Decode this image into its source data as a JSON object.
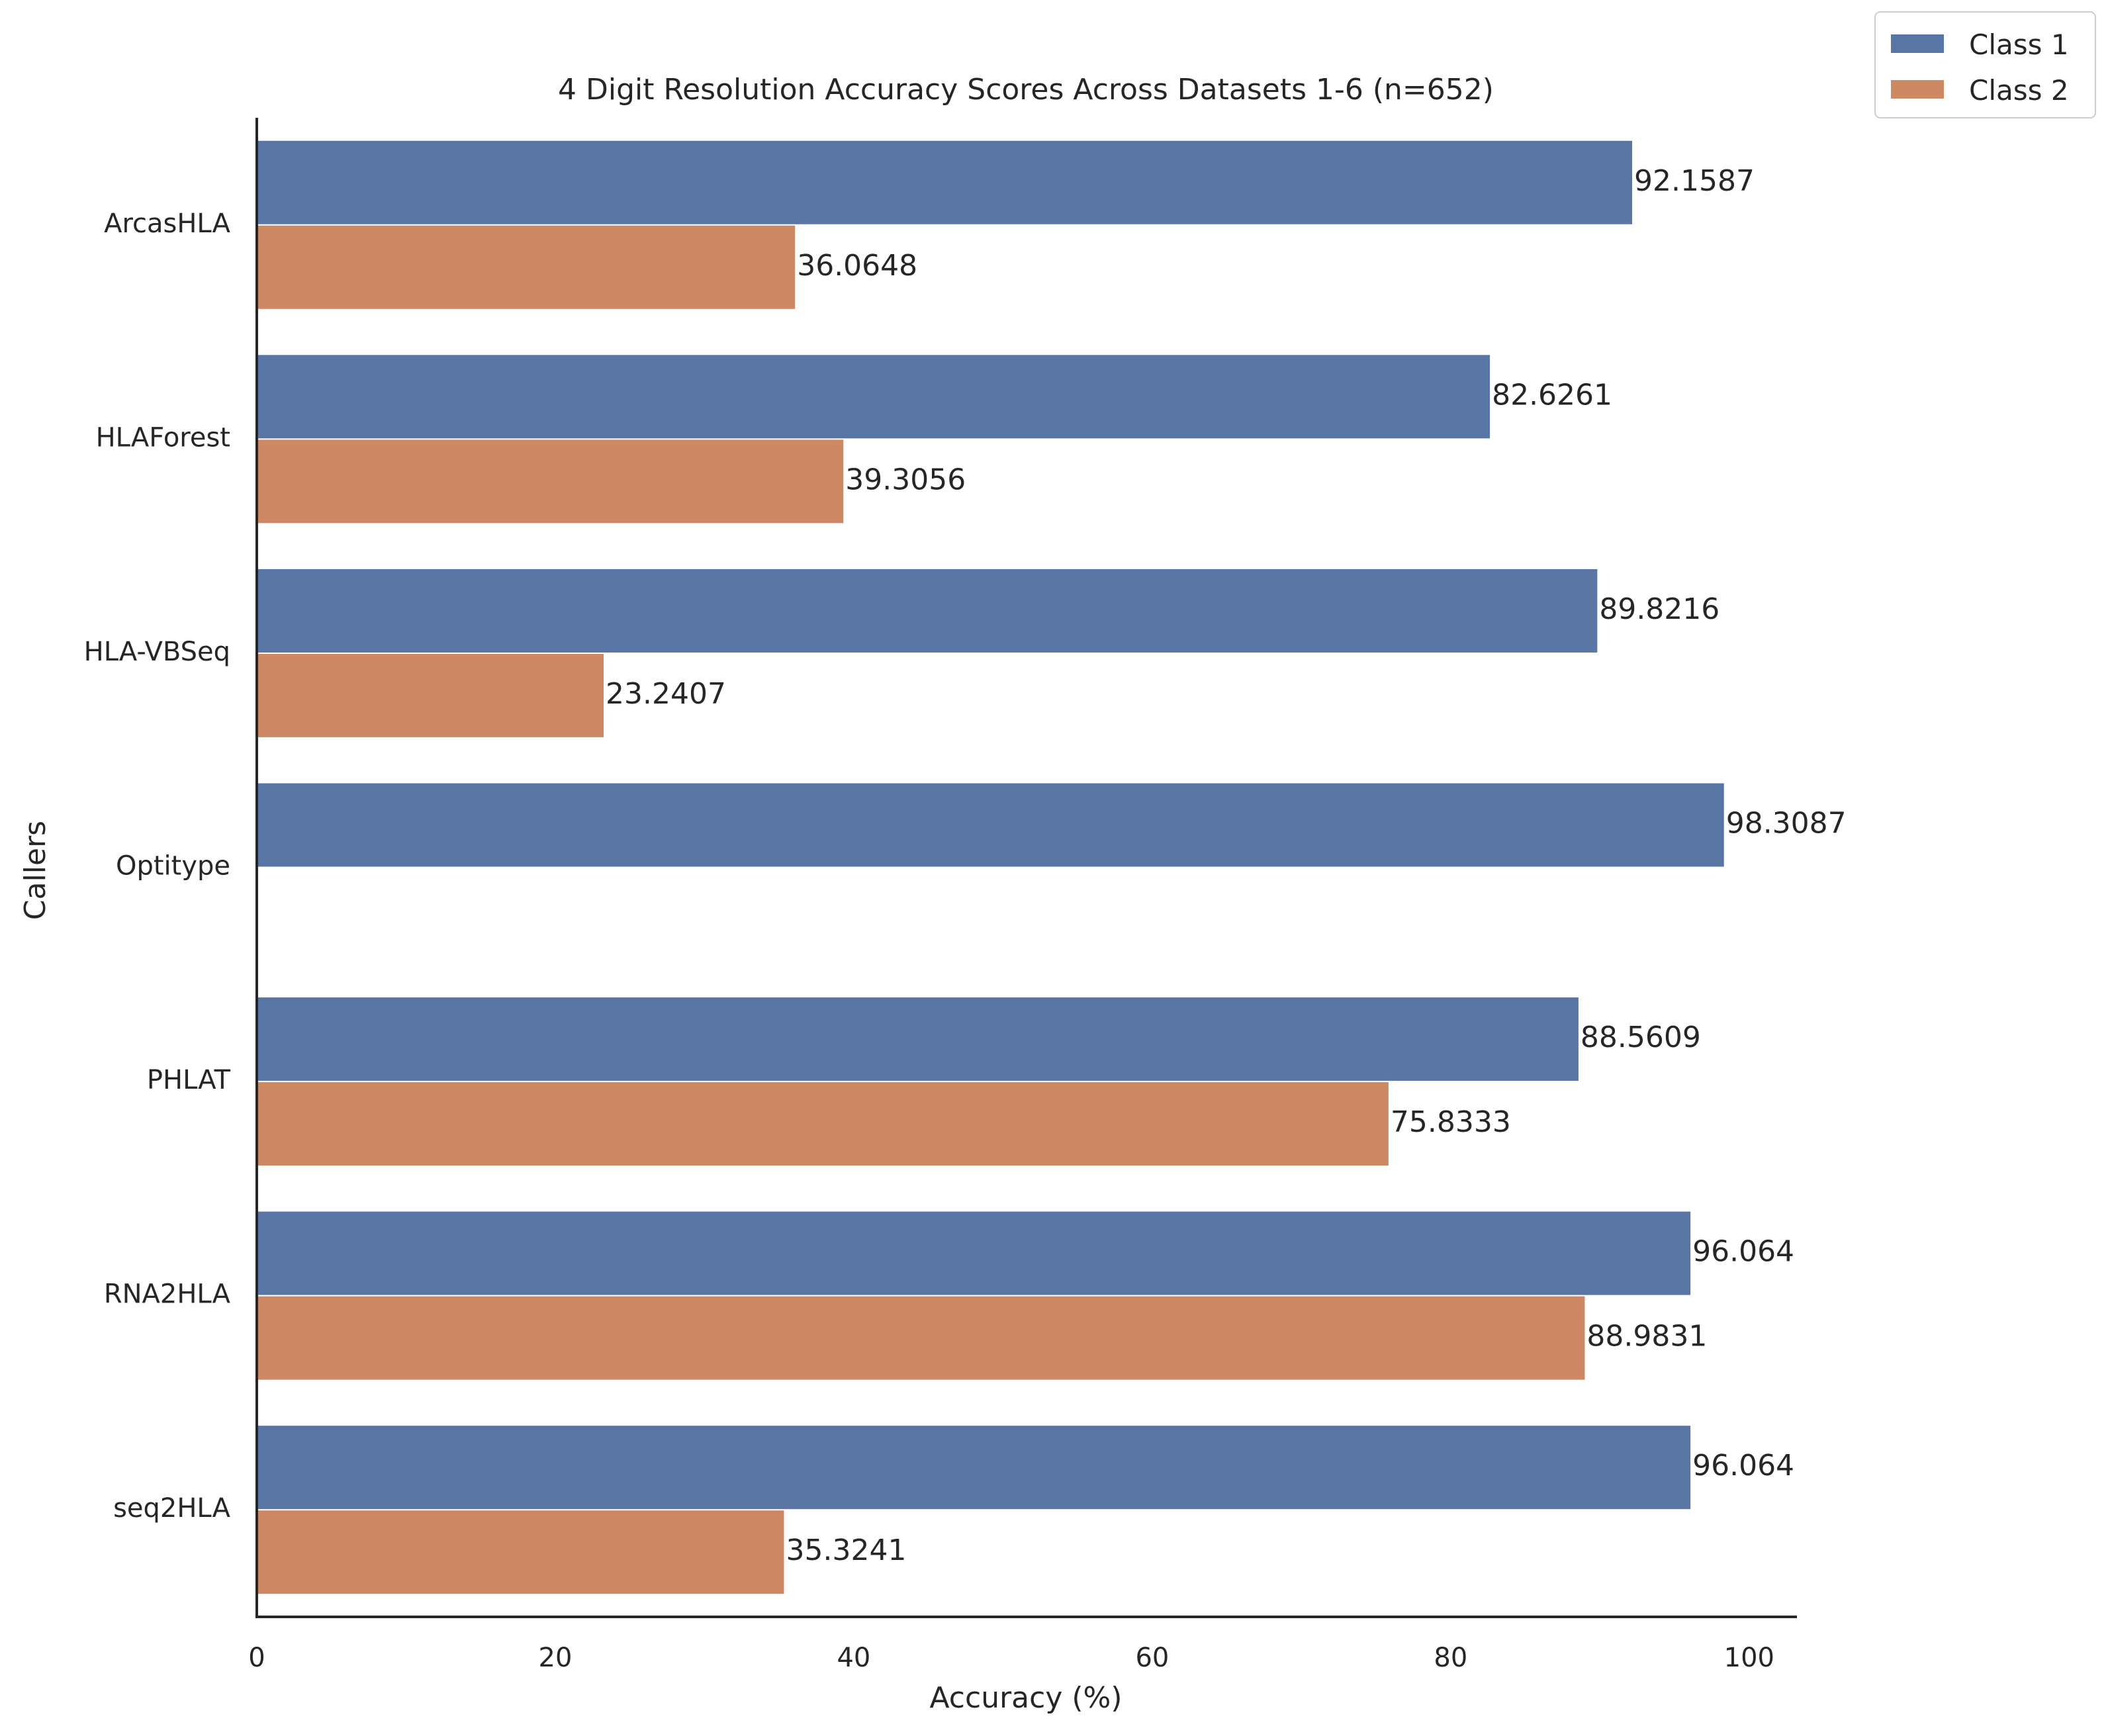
{
  "chart_data": {
    "type": "bar",
    "orientation": "horizontal",
    "title": "4 Digit Resolution Accuracy Scores Across Datasets 1-6 (n=652)",
    "xlabel": "Accuracy (%)",
    "ylabel": "Callers",
    "xlim": [
      0,
      103.2
    ],
    "xticks": [
      0,
      20,
      40,
      60,
      80,
      100
    ],
    "grid": false,
    "legend_position": "top-right outside",
    "categories": [
      "ArcasHLA",
      "HLAForest",
      "HLA-VBSeq",
      "Optitype",
      "PHLAT",
      "RNA2HLA",
      "seq2HLA"
    ],
    "series": [
      {
        "name": "Class 1",
        "color": "#5975a4",
        "values": [
          92.1587,
          82.6261,
          89.8216,
          98.3087,
          88.5609,
          96.064,
          96.064
        ],
        "labels": [
          "92.1587",
          "82.6261",
          "89.8216",
          "98.3087",
          "88.5609",
          "96.064",
          "96.064"
        ]
      },
      {
        "name": "Class 2",
        "color": "#cc8963",
        "values": [
          36.0648,
          39.3056,
          23.2407,
          null,
          75.8333,
          88.9831,
          35.3241
        ],
        "labels": [
          "36.0648",
          "39.3056",
          "23.2407",
          "",
          "75.8333",
          "88.9831",
          "35.3241"
        ]
      }
    ]
  }
}
